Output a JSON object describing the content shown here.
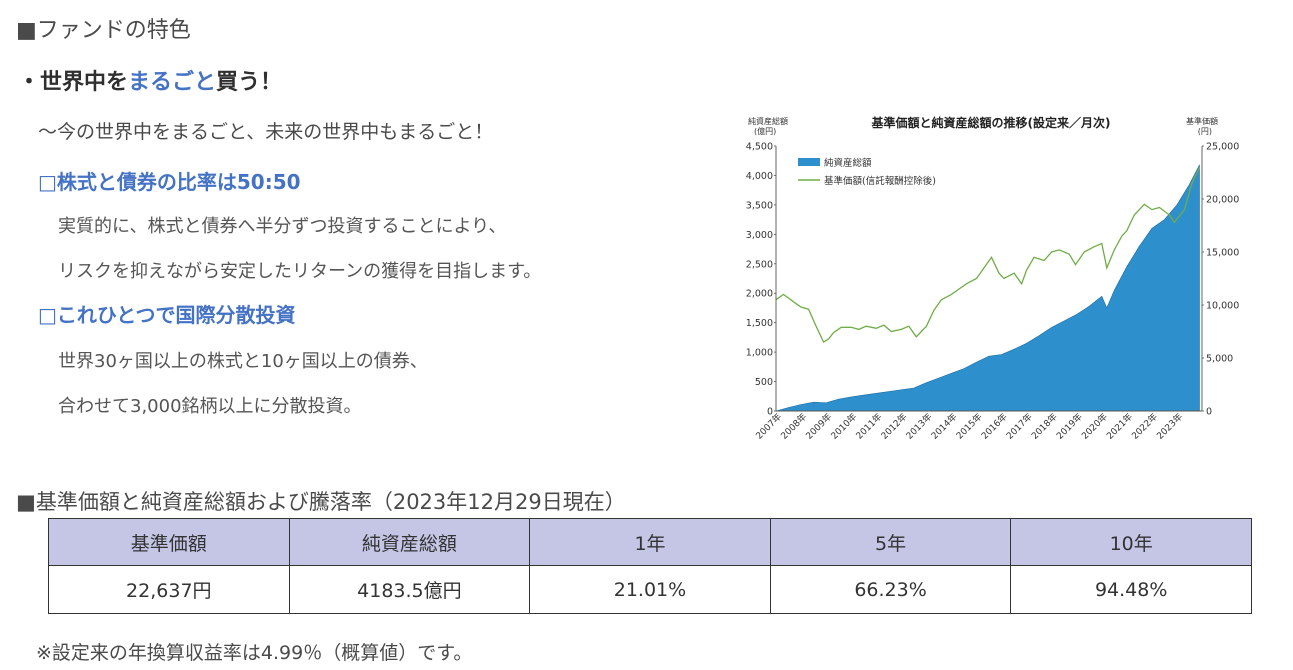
{
  "section1_title": "■ファンドの特色",
  "headline": {
    "prefix": "・世界中を",
    "highlight": "まるごと",
    "suffix": "買う！"
  },
  "subtitle": "〜今の世界中をまるごと、未来の世界中もまるごと！",
  "point1": {
    "heading": "□株式と債券の比率は50:50",
    "lines": [
      "実質的に、株式と債券へ半分ずつ投資することにより、",
      "リスクを抑えながら安定したリターンの獲得を目指します。"
    ]
  },
  "point2": {
    "heading": "□これひとつで国際分散投資",
    "lines": [
      "世界30ヶ国以上の株式と10ヶ国以上の債券、",
      "合わせて3,000銘柄以上に分散投資。"
    ]
  },
  "chart_data": {
    "type": "area+line",
    "title": "基準価額と純資産総額の推移(設定来／月次)",
    "ylabel_left": "純資産総額\n(億円)",
    "ylabel_right": "基準価額\n(円)",
    "ylim_left": [
      0,
      4500
    ],
    "ylim_right": [
      0,
      25000
    ],
    "yticks_left": [
      "4,500",
      "4,000",
      "3,500",
      "3,000",
      "2,500",
      "2,000",
      "1,500",
      "1,000",
      "500",
      "0"
    ],
    "yticks_right": [
      "25,000",
      "20,000",
      "15,000",
      "10,000",
      "5,000",
      "0"
    ],
    "categories": [
      "2007年",
      "2008年",
      "2009年",
      "2010年",
      "2011年",
      "2012年",
      "2013年",
      "2014年",
      "2015年",
      "2016年",
      "2017年",
      "2018年",
      "2019年",
      "2020年",
      "2021年",
      "2022年",
      "2023年"
    ],
    "legend": [
      "純資産総額",
      "基準価額(信託報酬控除後)"
    ],
    "series": [
      {
        "name": "純資産総額",
        "color": "#2e8fcd",
        "x": [
          2007.0,
          2007.5,
          2008.0,
          2008.5,
          2009.0,
          2009.5,
          2010.0,
          2010.5,
          2011.0,
          2011.5,
          2012.0,
          2012.5,
          2013.0,
          2013.5,
          2014.0,
          2014.5,
          2015.0,
          2015.5,
          2016.0,
          2016.5,
          2017.0,
          2017.5,
          2018.0,
          2018.5,
          2019.0,
          2019.5,
          2020.0,
          2020.2,
          2020.5,
          2021.0,
          2021.5,
          2022.0,
          2022.5,
          2023.0,
          2023.5,
          2023.9
        ],
        "values": [
          0,
          60,
          110,
          150,
          140,
          200,
          240,
          270,
          300,
          330,
          360,
          390,
          480,
          560,
          640,
          720,
          830,
          930,
          960,
          1050,
          1150,
          1280,
          1420,
          1530,
          1640,
          1780,
          1950,
          1750,
          2050,
          2450,
          2800,
          3100,
          3250,
          3500,
          3850,
          4180
        ]
      },
      {
        "name": "基準価額(信託報酬控除後)",
        "color": "#70ad47",
        "x": [
          2007.0,
          2007.3,
          2007.7,
          2008.0,
          2008.3,
          2008.6,
          2008.9,
          2009.1,
          2009.3,
          2009.6,
          2010.0,
          2010.3,
          2010.6,
          2011.0,
          2011.3,
          2011.6,
          2012.0,
          2012.3,
          2012.6,
          2013.0,
          2013.3,
          2013.6,
          2014.0,
          2014.3,
          2014.6,
          2015.0,
          2015.3,
          2015.6,
          2015.9,
          2016.1,
          2016.5,
          2016.8,
          2017.0,
          2017.3,
          2017.7,
          2018.0,
          2018.3,
          2018.7,
          2018.95,
          2019.3,
          2019.7,
          2020.0,
          2020.2,
          2020.5,
          2020.8,
          2021.0,
          2021.3,
          2021.7,
          2022.0,
          2022.3,
          2022.7,
          2022.9,
          2023.3,
          2023.6,
          2023.9
        ],
        "values": [
          10500,
          11000,
          10300,
          9800,
          9600,
          8000,
          6500,
          6800,
          7400,
          7900,
          7900,
          7700,
          8000,
          7800,
          8100,
          7500,
          7700,
          8000,
          7000,
          8000,
          9500,
          10500,
          11000,
          11500,
          12000,
          12500,
          13500,
          14500,
          13000,
          12500,
          13000,
          12000,
          13300,
          14500,
          14200,
          15000,
          15200,
          14800,
          13800,
          15000,
          15500,
          15800,
          13500,
          15200,
          16500,
          17000,
          18500,
          19500,
          19000,
          19200,
          18500,
          17800,
          19000,
          21500,
          23000
        ]
      }
    ]
  },
  "section2_title": "■基準価額と純資産総額および騰落率（2023年12月29日現在）",
  "table": {
    "headers": [
      "基準価額",
      "純資産総額",
      "1年",
      "5年",
      "10年"
    ],
    "values": [
      "22,637円",
      "4183.5億円",
      "21.01%",
      "66.23%",
      "94.48%"
    ]
  },
  "footnote": "※設定来の年換算収益率は4.99％（概算値）です。"
}
